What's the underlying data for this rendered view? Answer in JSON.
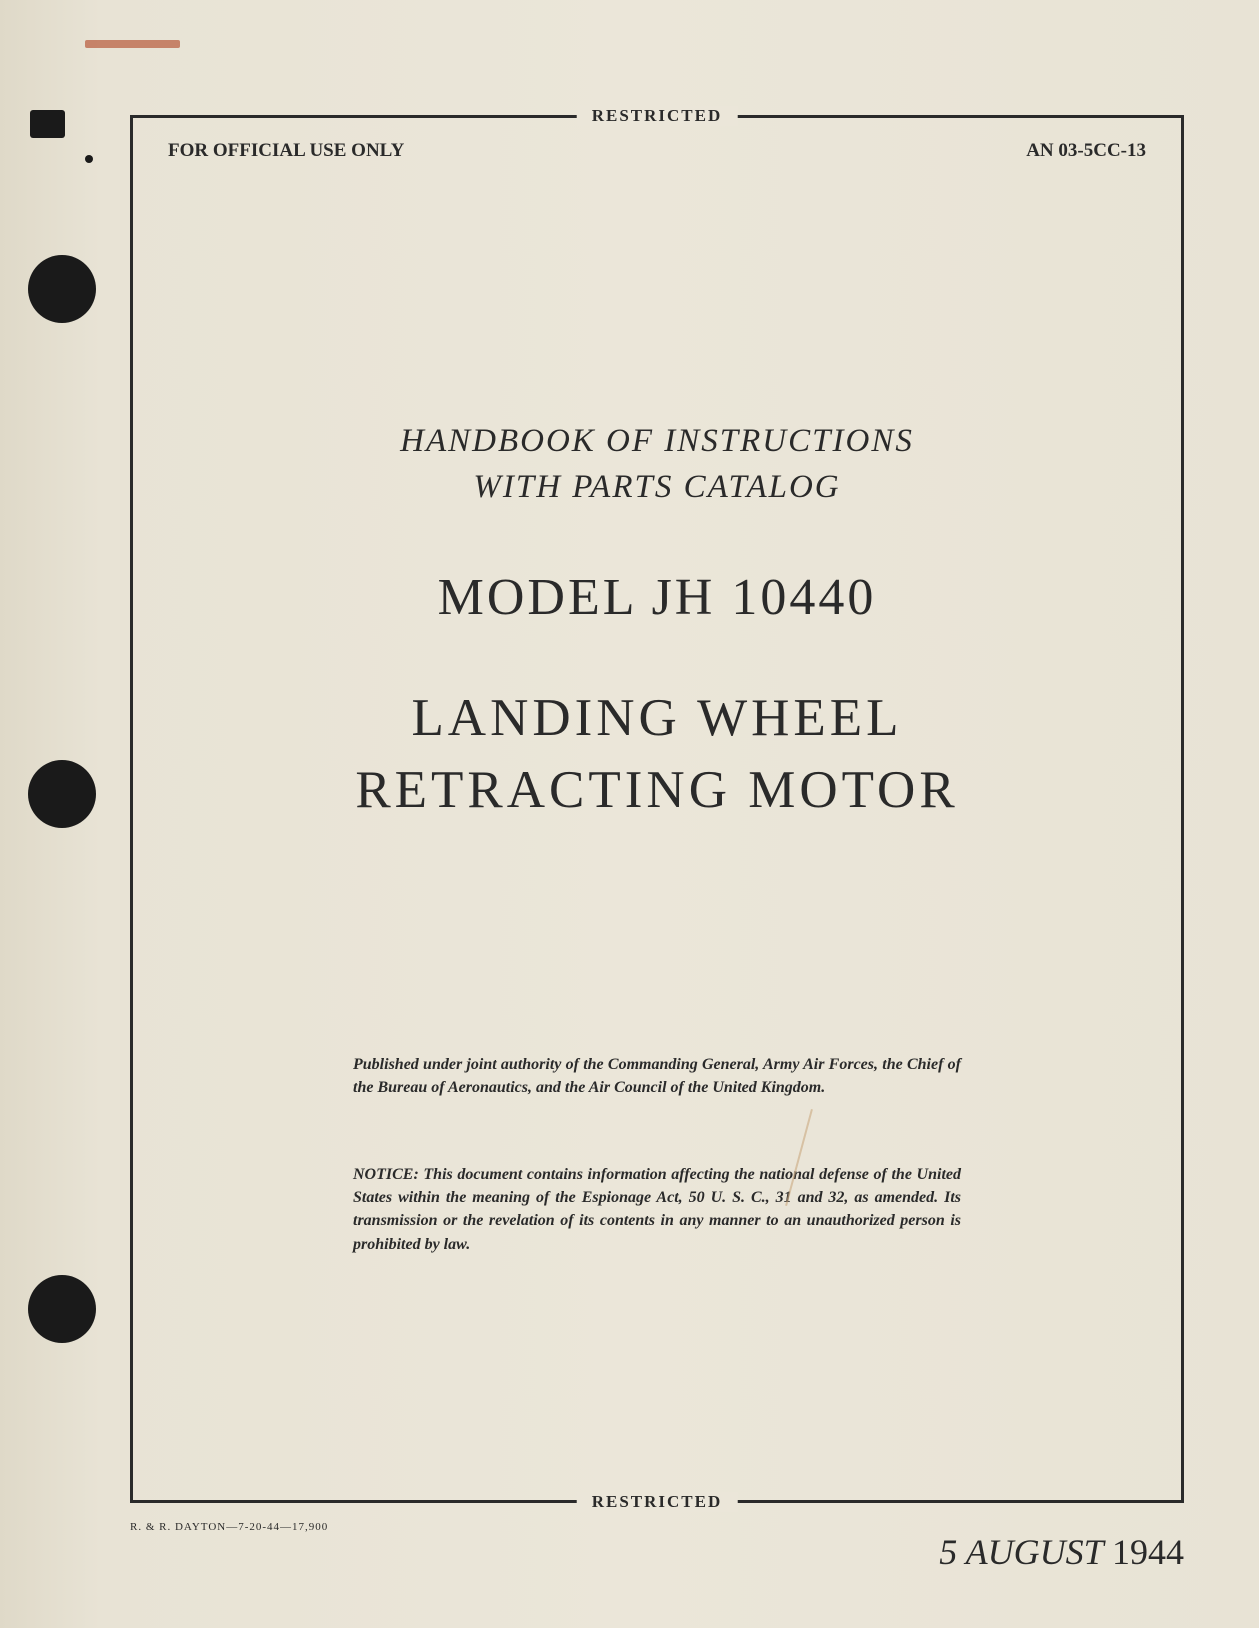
{
  "classification": "RESTRICTED",
  "header": {
    "left": "FOR OFFICIAL USE ONLY",
    "right": "AN 03-5CC-13"
  },
  "subtitle": {
    "line1": "HANDBOOK OF INSTRUCTIONS",
    "line2": "WITH PARTS CATALOG"
  },
  "model": "MODEL JH 10440",
  "title": {
    "line1": "LANDING WHEEL",
    "line2": "RETRACTING MOTOR"
  },
  "authority": "Published under joint authority of the Commanding General, Army Air Forces, the Chief of the Bureau of Aeronautics, and the Air Council of the United Kingdom.",
  "notice": "NOTICE: This document contains information affecting the national defense of the United States within the meaning of the Espionage Act, 50 U. S. C., 31 and 32, as amended. Its transmission or the revelation of its contents in any manner to an unauthorized person is prohibited by law.",
  "printInfo": "R. & R. DAYTON—7-20-44—17,900",
  "date": {
    "day_month": "5 AUGUST",
    "year": "1944"
  },
  "colors": {
    "paper_bg": "#e8e3d5",
    "text": "#2a2a2a",
    "paper_shadow": "#dfd9c8",
    "red_mark": "#b85a3a"
  }
}
